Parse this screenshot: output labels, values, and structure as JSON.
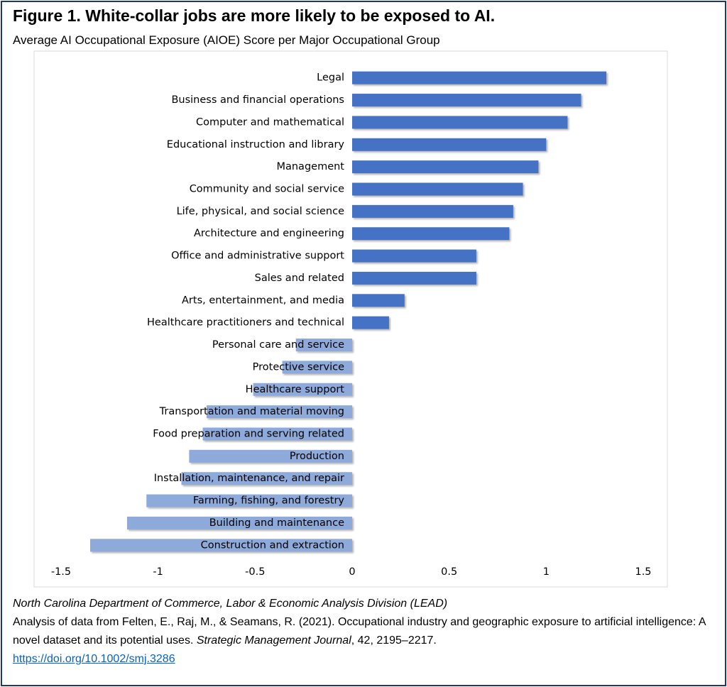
{
  "chart_data": {
    "type": "hbar",
    "title": "Figure 1. White-collar jobs are more likely to be exposed to AI.",
    "subtitle": "Average AI Occupational Exposure (AIOE) Score per Major Occupational Group",
    "categories": [
      "Legal",
      "Business and financial operations",
      "Computer and mathematical",
      "Educational instruction and library",
      "Management",
      "Community and social service",
      "Life, physical, and social science",
      "Architecture and engineering",
      "Office and administrative support",
      "Sales and related",
      "Arts, entertainment, and media",
      "Healthcare practitioners and technical",
      "Personal care and service",
      "Protective service",
      "Healthcare support",
      "Transportation and material moving",
      "Food preparation and serving related",
      "Production",
      "Installation, maintenance, and repair",
      "Farming, fishing, and forestry",
      "Building and maintenance",
      "Construction and extraction"
    ],
    "values": [
      1.31,
      1.18,
      1.11,
      1.0,
      0.96,
      0.88,
      0.83,
      0.81,
      0.64,
      0.64,
      0.27,
      0.19,
      -0.29,
      -0.36,
      -0.51,
      -0.75,
      -0.77,
      -0.84,
      -0.88,
      -1.06,
      -1.16,
      -1.35
    ],
    "color": "#4472c4",
    "negative_color": "#8eaadb",
    "xlim": [
      -1.5,
      1.5
    ],
    "xticks": [
      -1.5,
      -1,
      -0.5,
      0,
      0.5,
      1,
      1.5
    ],
    "grid": false
  },
  "footer": {
    "source": "North Carolina Department of Commerce, Labor & Economic Analysis Division (LEAD)",
    "citation": [
      "Analysis of data from Felten, E., Raj, M., & Seamans, R. (2021). Occupational industry and geographic exposure to artificial intelligence: A novel dataset and its potential uses. ",
      "Strategic Management Journal",
      ", 42, 2195–2217."
    ],
    "link": "https://doi.org/10.1002/smj.3286"
  }
}
